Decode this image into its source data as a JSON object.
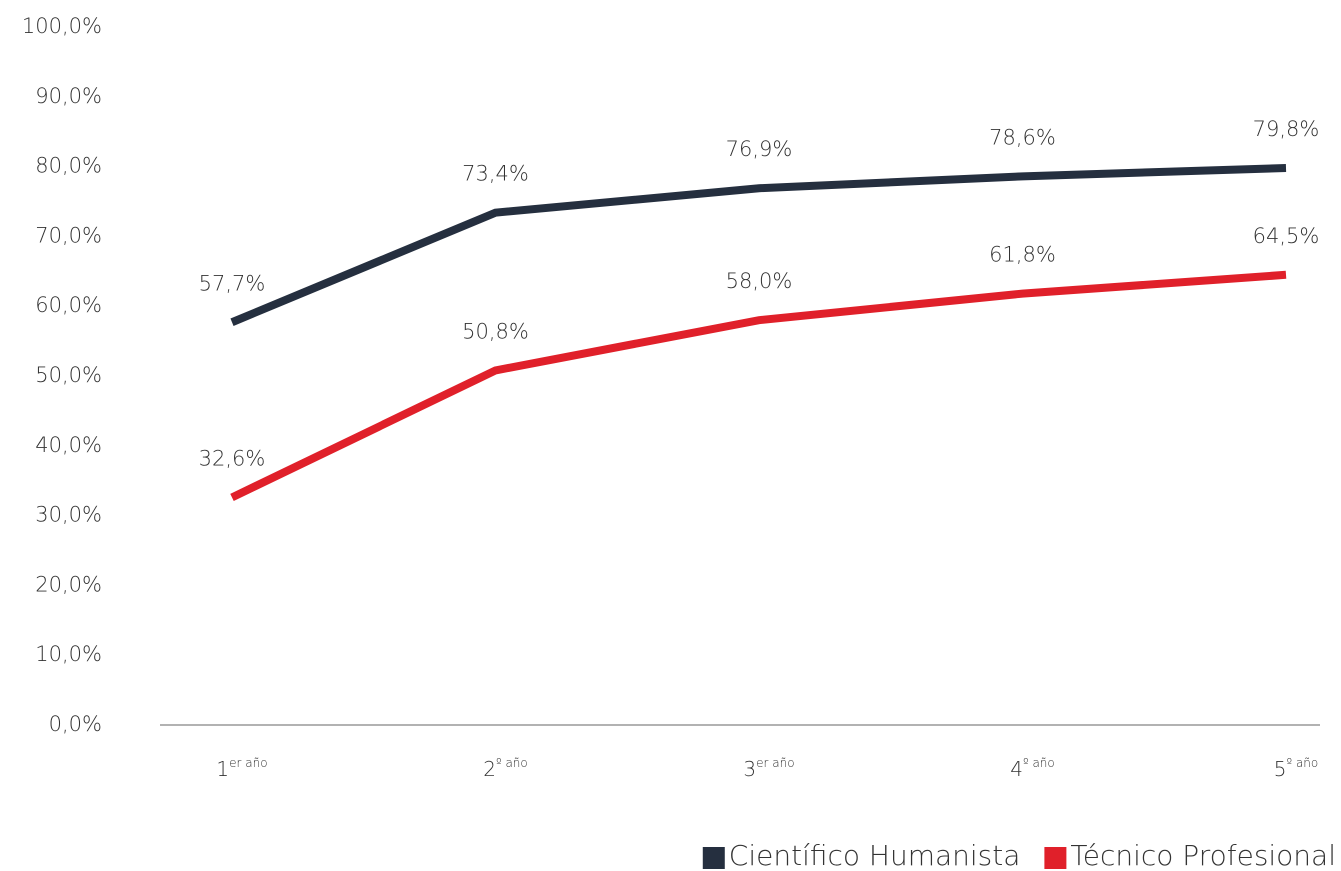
{
  "chart_data": {
    "type": "line",
    "categories": [
      "1er año",
      "2º año",
      "3er año",
      "4º año",
      "5º año"
    ],
    "series": [
      {
        "name": "Científico Humanista",
        "color": "#252f3f",
        "values": [
          57.7,
          73.4,
          76.9,
          78.6,
          79.8
        ],
        "value_labels": [
          "57,7%",
          "73,4%",
          "76,9%",
          "78,6%",
          "79,8%"
        ]
      },
      {
        "name": "Técnico Profesional",
        "color": "#e0202a",
        "values": [
          32.6,
          50.8,
          58.0,
          61.8,
          64.5
        ],
        "value_labels": [
          "32,6%",
          "50,8%",
          "58,0%",
          "61,8%",
          "64,5%"
        ]
      }
    ],
    "ylim": [
      0,
      100
    ],
    "yticks": [
      {
        "value": 0,
        "label": "0,0%"
      },
      {
        "value": 10,
        "label": "10,0%"
      },
      {
        "value": 20,
        "label": "20,0%"
      },
      {
        "value": 30,
        "label": "30,0%"
      },
      {
        "value": 40,
        "label": "40,0%"
      },
      {
        "value": 50,
        "label": "50,0%"
      },
      {
        "value": 60,
        "label": "60,0%"
      },
      {
        "value": 70,
        "label": "70,0%"
      },
      {
        "value": 80,
        "label": "80,0%"
      },
      {
        "value": 90,
        "label": "90,0%"
      },
      {
        "value": 100,
        "label": "100,0%"
      }
    ],
    "legend": "bottom-right"
  }
}
